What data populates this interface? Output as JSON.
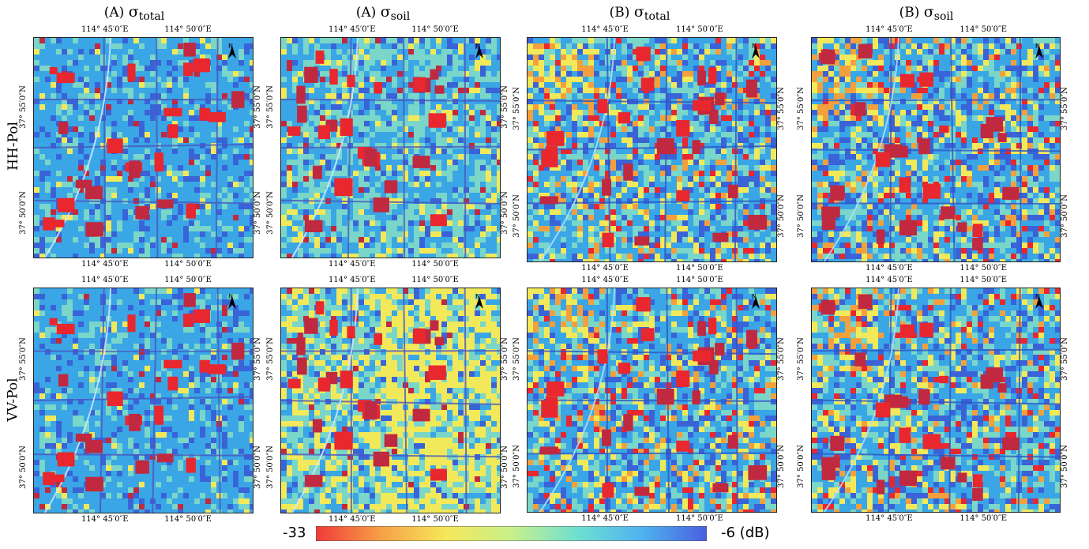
{
  "columns": [
    {
      "prefix": "(A)",
      "symbol": "σ",
      "ring": "°",
      "sub": "total"
    },
    {
      "prefix": "(A)",
      "symbol": "σ",
      "ring": "°",
      "sub": "soil"
    },
    {
      "prefix": "(B)",
      "symbol": "σ",
      "ring": "°",
      "sub": "total"
    },
    {
      "prefix": "(B)",
      "symbol": "σ",
      "ring": "°",
      "sub": "soil"
    }
  ],
  "rows": [
    {
      "label": "HH-Pol"
    },
    {
      "label": "VV-Pol"
    }
  ],
  "coords": {
    "lon1": "114° 45′0″E",
    "lon2": "114° 50′0″E",
    "lat1": "37° 55′0″N",
    "lat2": "37° 50′0″N"
  },
  "north_arrow": {
    "icon": "north-arrow-icon",
    "letter": "N"
  },
  "colorbar": {
    "min_label": "-33",
    "max_label": "-6 (dB)",
    "colors": [
      "#f03a3a",
      "#f7a046",
      "#f5e85a",
      "#c8f08a",
      "#6fe0d0",
      "#4fb3ef",
      "#4a5fe0"
    ]
  },
  "palette": {
    "urban": "#e8272f",
    "urban_dark": "#c0293f",
    "dry": "#f2e95a",
    "mid": "#79d6c8",
    "wet": "#3aa6e6",
    "deep": "#3a63d8",
    "warm": "#f3a03c"
  }
}
